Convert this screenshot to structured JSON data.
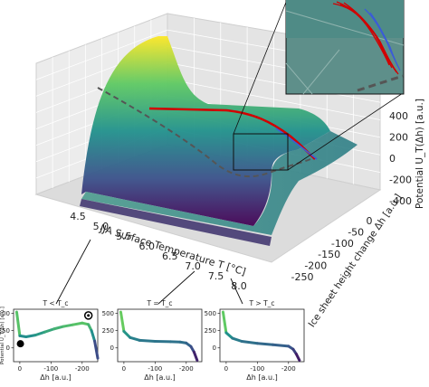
{
  "chart_data": [
    {
      "type": "surface3d",
      "title": "",
      "xlabel": "JJA Surface Temperature T [°C]",
      "ylabel": "Ice sheet height change Δh [a.u.]",
      "zlabel": "Potential U_T(Δh) [a.u.]",
      "xticks": [
        "4.5",
        "5.0",
        "5.5",
        "6.0",
        "6.5",
        "7.0",
        "7.5",
        "8.0"
      ],
      "yticks": [
        "0",
        "-50",
        "-100",
        "-150",
        "-200",
        "-250"
      ],
      "zticks": [
        "400",
        "200",
        "0",
        "-200",
        "-400"
      ],
      "xlim": [
        4.5,
        8.0
      ],
      "ylim": [
        0,
        -250
      ],
      "zlim": [
        -400,
        500
      ],
      "colormap": [
        "#440154",
        "#3b528b",
        "#21918c",
        "#5ec962",
        "#fde725"
      ],
      "series": [
        {
          "name": "",
          "style": "dashed",
          "color": "#555555",
          "x": [
            4.5,
            5.0,
            5.5,
            6.0,
            6.5,
            7.0,
            7.5,
            8.0
          ],
          "y": [
            10,
            -2,
            -12,
            -40,
            -160,
            -200,
            -215,
            -225
          ]
        },
        {
          "name": "",
          "style": "solid",
          "color": "#d10000",
          "x": [
            5.0,
            5.5,
            6.0,
            6.5,
            7.0,
            7.5,
            8.0
          ],
          "y": [
            -5,
            -15,
            -30,
            -70,
            -170,
            -210,
            -230
          ]
        },
        {
          "name": "",
          "style": "solid",
          "color": "#3a5bd9",
          "x": [
            6.5,
            7.0,
            7.5,
            8.0
          ],
          "y": [
            -80,
            -175,
            -215,
            -235
          ]
        }
      ],
      "grid": true,
      "inset": "zoom of trajectory region (top-right)"
    },
    {
      "type": "line",
      "title": "T < T_c",
      "xlabel": "Δh [a.u.]",
      "ylabel": "Potential U_T(Δh) [a.u.]",
      "xlim": [
        20,
        -250
      ],
      "ylim": [
        -200,
        560
      ],
      "xticks": [
        "0",
        "-100",
        "-200"
      ],
      "yticks": [
        "500",
        "250",
        "0",
        "-250"
      ],
      "x": [
        10,
        0,
        -20,
        -50,
        -80,
        -110,
        -140,
        -170,
        -200,
        -220,
        -230,
        -240,
        -250
      ],
      "y": [
        520,
        175,
        160,
        185,
        230,
        275,
        310,
        335,
        360,
        340,
        250,
        100,
        -150
      ],
      "markers": [
        {
          "style": "filled",
          "x": -2,
          "y": 60
        },
        {
          "style": "open",
          "x": -220,
          "y": 470
        }
      ]
    },
    {
      "type": "line",
      "title": "T = T_c",
      "xlabel": "Δh [a.u.]",
      "ylabel": "",
      "xlim": [
        20,
        -250
      ],
      "ylim": [
        -200,
        560
      ],
      "xticks": [
        "0",
        "-100",
        "-200"
      ],
      "yticks": [
        "500",
        "250",
        "0",
        "-250"
      ],
      "x": [
        10,
        0,
        -20,
        -50,
        -100,
        -150,
        -180,
        -200,
        -215,
        -225,
        -235
      ],
      "y": [
        520,
        240,
        150,
        110,
        95,
        90,
        85,
        70,
        20,
        -60,
        -180
      ]
    },
    {
      "type": "line",
      "title": "T > T_c",
      "xlabel": "Δh [a.u.]",
      "ylabel": "",
      "xlim": [
        20,
        -250
      ],
      "ylim": [
        -200,
        560
      ],
      "xticks": [
        "0",
        "-100",
        "-200"
      ],
      "yticks": [
        "500",
        "250",
        "0",
        "-250"
      ],
      "x": [
        10,
        0,
        -20,
        -50,
        -100,
        -150,
        -200,
        -215,
        -225,
        -235
      ],
      "y": [
        520,
        220,
        140,
        95,
        65,
        45,
        25,
        -20,
        -90,
        -180
      ]
    }
  ]
}
